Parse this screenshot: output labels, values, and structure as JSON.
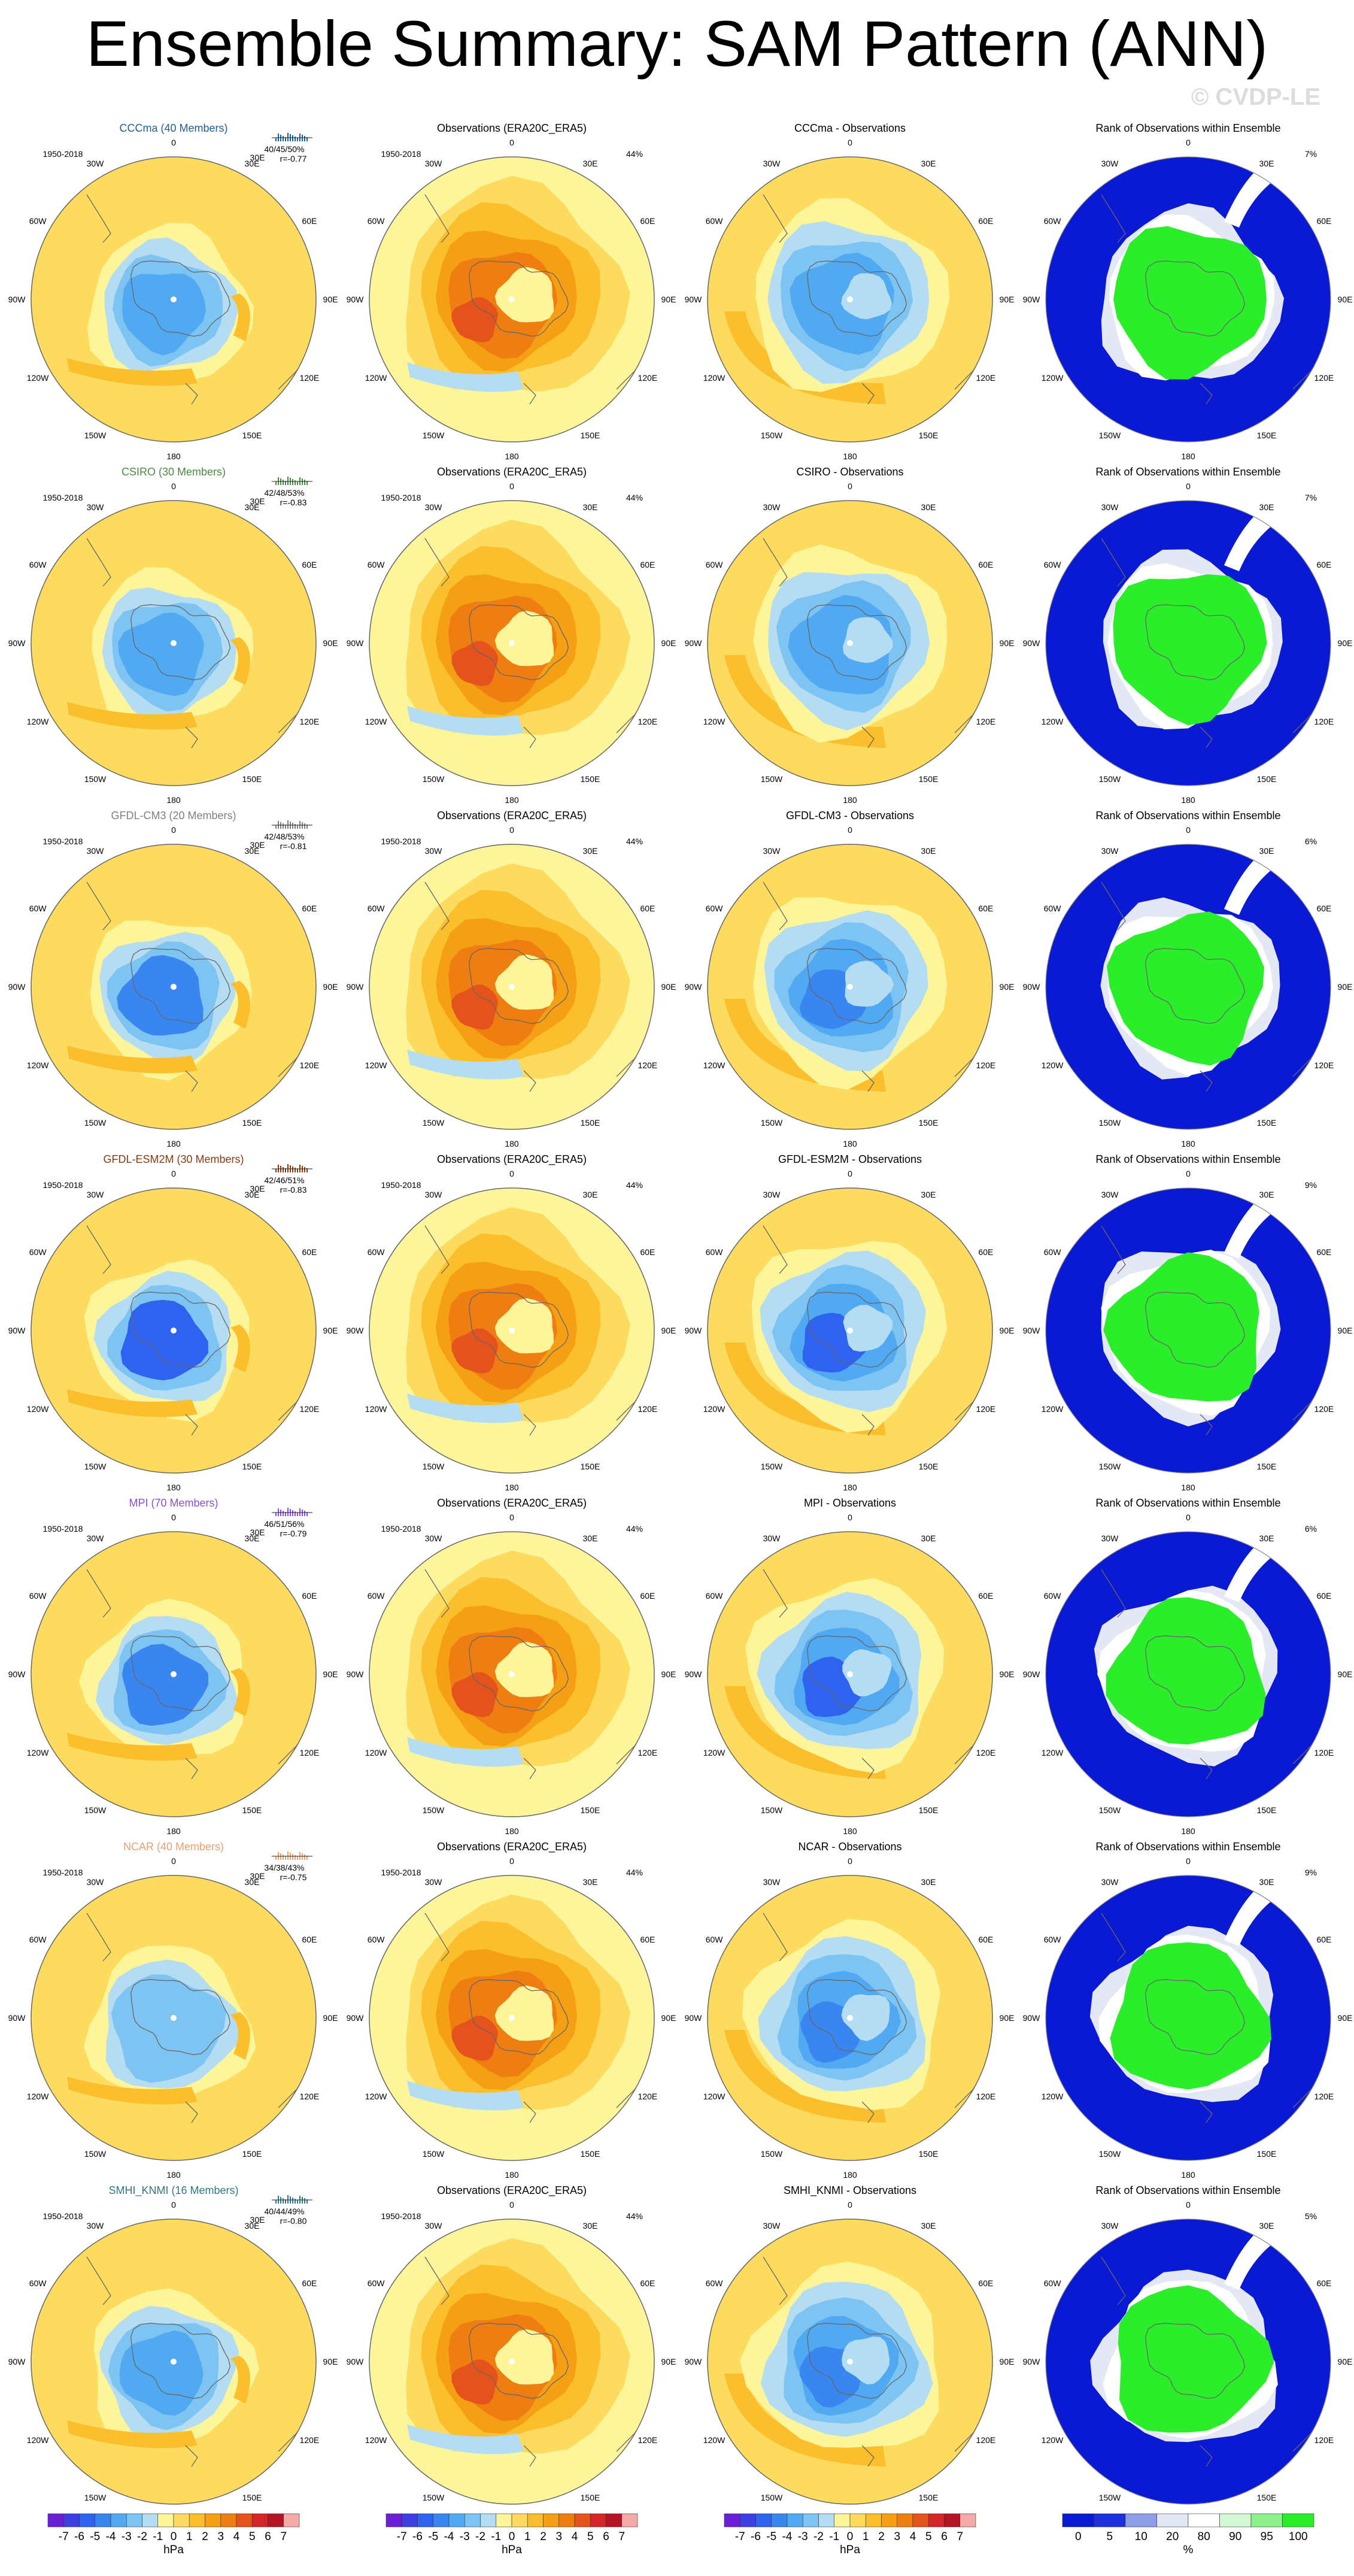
{
  "title": "Ensemble Summary: SAM Pattern (ANN)",
  "watermark": "© CVDP-LE",
  "palette": {
    "diverging": [
      "#6a1fd6",
      "#3d3fe0",
      "#2f62ee",
      "#3a86f0",
      "#51a9f2",
      "#7dc4f3",
      "#b4dcf2",
      "#fdf59a",
      "#fddb5e",
      "#fbbf2e",
      "#f5a014",
      "#ef7e12",
      "#e5531d",
      "#d42528",
      "#b51424",
      "#f5a9a9"
    ],
    "rank": [
      "#0a1ad4",
      "#1e30dc",
      "#8f9ce8",
      "#e4e8f4",
      "#ffffff",
      "#d4f7d4",
      "#8cf08c",
      "#2bee2b"
    ],
    "map_bg": "#ffffff",
    "coast": "#666666"
  },
  "chart_data": {
    "type": "heatmap",
    "projection": "south-polar-stereographic",
    "columns": [
      {
        "key": "ensemble",
        "header": "{model} ({members} Members)"
      },
      {
        "key": "observations",
        "header": "Observations (ERA20C_ERA5)"
      },
      {
        "key": "difference",
        "header": "{model} - Observations"
      },
      {
        "key": "rank",
        "header": "Rank of Observations within Ensemble"
      }
    ],
    "period": "1950-2018",
    "obs_variance_label": "44%",
    "longitude_labels": [
      "0",
      "30E",
      "60E",
      "90E",
      "120E",
      "150E",
      "180",
      "150W",
      "120W",
      "90W",
      "60W",
      "30W"
    ],
    "rows": [
      {
        "model": "CCCma",
        "members": 40,
        "title": "CCCma (40 Members)",
        "title_color": "#1f5f8b",
        "pct": "40/45/50%",
        "r": "r=-0.77",
        "diff_title": "CCCma - Observations",
        "rank_pct": "7%",
        "ens_center": -4,
        "ens_zonal": 1,
        "diff_min": -4,
        "diff_ring": 2
      },
      {
        "model": "CSIRO",
        "members": 30,
        "title": "CSIRO (30 Members)",
        "title_color": "#4a8a46",
        "pct": "42/48/53%",
        "r": "r=-0.83",
        "diff_title": "CSIRO - Observations",
        "rank_pct": "7%",
        "ens_center": -4,
        "ens_zonal": 1,
        "diff_min": -4,
        "diff_ring": 2
      },
      {
        "model": "GFDL-CM3",
        "members": 20,
        "title": "GFDL-CM3 (20 Members)",
        "title_color": "#808080",
        "pct": "42/48/53%",
        "r": "r=-0.81",
        "diff_title": "GFDL-CM3 - Observations",
        "rank_pct": "6%",
        "ens_center": -5,
        "ens_zonal": 1,
        "diff_min": -5,
        "diff_ring": 2
      },
      {
        "model": "GFDL-ESM2M",
        "members": 30,
        "title": "GFDL-ESM2M (30 Members)",
        "title_color": "#8b3a10",
        "pct": "42/46/51%",
        "r": "r=-0.83",
        "diff_title": "GFDL-ESM2M - Observations",
        "rank_pct": "9%",
        "ens_center": -6,
        "ens_zonal": 2,
        "diff_min": -6,
        "diff_ring": 2
      },
      {
        "model": "MPI",
        "members": 70,
        "title": "MPI (70 Members)",
        "title_color": "#8a4fd8",
        "pct": "46/51/56%",
        "r": "r=-0.79",
        "diff_title": "MPI - Observations",
        "rank_pct": "6%",
        "ens_center": -5,
        "ens_zonal": 2,
        "diff_min": -6,
        "diff_ring": 2
      },
      {
        "model": "NCAR",
        "members": 40,
        "title": "NCAR (40 Members)",
        "title_color": "#e7a070",
        "pct": "34/38/43%",
        "r": "r=-0.75",
        "diff_title": "NCAR - Observations",
        "rank_pct": "9%",
        "ens_center": -3,
        "ens_zonal": 1,
        "diff_min": -5,
        "diff_ring": 2
      },
      {
        "model": "SMHI_KNMI",
        "members": 16,
        "title": "SMHI_KNMI (16 Members)",
        "title_color": "#2f7a80",
        "pct": "40/44/49%",
        "r": "r=-0.80",
        "diff_title": "SMHI_KNMI - Observations",
        "rank_pct": "5%",
        "ens_center": -4,
        "ens_zonal": 1,
        "diff_min": -5,
        "diff_ring": 2
      }
    ],
    "observations_field": {
      "center": 5,
      "ring": 3
    },
    "colorbar_hpa": {
      "levels": [
        "-7",
        "-6",
        "-5",
        "-4",
        "-3",
        "-2",
        "-1",
        "0",
        "1",
        "2",
        "3",
        "4",
        "5",
        "6",
        "7"
      ],
      "units": "hPa",
      "range": [
        -8,
        8
      ]
    },
    "colorbar_rank": {
      "levels": [
        "0",
        "5",
        "10",
        "20",
        "80",
        "90",
        "95",
        "100"
      ],
      "units": "%"
    }
  }
}
